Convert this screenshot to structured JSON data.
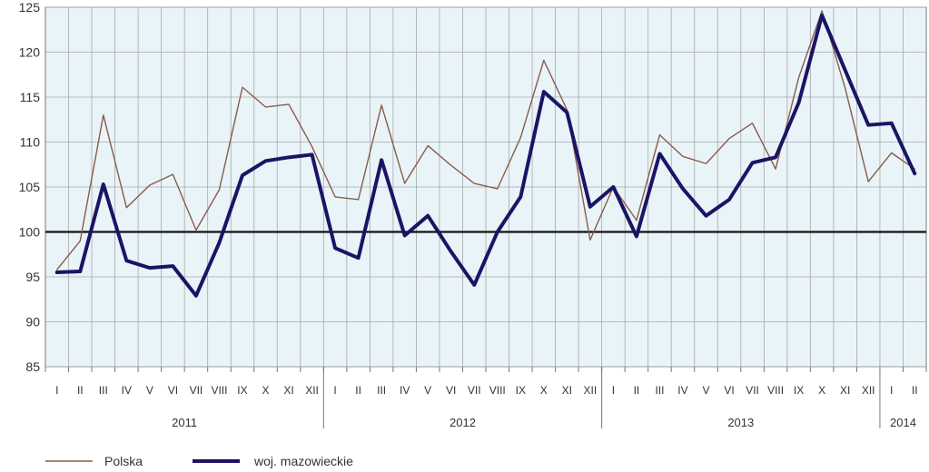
{
  "chart_data": {
    "type": "line",
    "title": "",
    "xlabel": "",
    "ylabel": "",
    "ylim": [
      85,
      125
    ],
    "yticks": [
      "85",
      "90",
      "95",
      "100",
      "105",
      "110",
      "115",
      "120",
      "125"
    ],
    "reference_line": 100,
    "grid": true,
    "legend_position": "bottom-left",
    "categories": [
      "I",
      "II",
      "III",
      "IV",
      "V",
      "VI",
      "VII",
      "VIII",
      "IX",
      "X",
      "XI",
      "XII",
      "I",
      "II",
      "III",
      "IV",
      "V",
      "VI",
      "VII",
      "VIII",
      "IX",
      "X",
      "XI",
      "XII",
      "I",
      "II",
      "III",
      "IV",
      "V",
      "VI",
      "VII",
      "VIII",
      "IX",
      "X",
      "XI",
      "XII",
      "I",
      "II"
    ],
    "years": [
      {
        "label": "2011",
        "start": 0,
        "count": 12
      },
      {
        "label": "2012",
        "start": 12,
        "count": 12
      },
      {
        "label": "2013",
        "start": 24,
        "count": 12
      },
      {
        "label": "2014",
        "start": 36,
        "count": 2
      }
    ],
    "series": [
      {
        "name": "Polska",
        "color": "#8b5a4a",
        "values": [
          95.8,
          99.0,
          113.0,
          102.7,
          105.2,
          106.4,
          100.2,
          104.7,
          116.1,
          113.9,
          114.2,
          109.5,
          103.9,
          103.6,
          114.1,
          105.4,
          109.6,
          107.4,
          105.4,
          104.8,
          110.5,
          119.1,
          113.6,
          99.1,
          105.0,
          101.3,
          110.8,
          108.4,
          107.6,
          110.4,
          112.1,
          107.0,
          117.2,
          124.6,
          116.0,
          105.6,
          108.8,
          107.0
        ]
      },
      {
        "name": "woj. mazowieckie",
        "color": "#1b1464",
        "values": [
          95.5,
          95.6,
          105.3,
          96.8,
          96.0,
          96.2,
          92.9,
          98.8,
          106.3,
          107.9,
          108.3,
          108.6,
          98.2,
          97.1,
          108.0,
          99.6,
          101.8,
          97.8,
          94.1,
          100.0,
          103.9,
          115.6,
          113.3,
          102.8,
          105.0,
          99.5,
          108.7,
          104.8,
          101.8,
          103.6,
          107.7,
          108.3,
          114.4,
          124.1,
          118.0,
          111.9,
          112.1,
          106.5
        ]
      }
    ]
  }
}
